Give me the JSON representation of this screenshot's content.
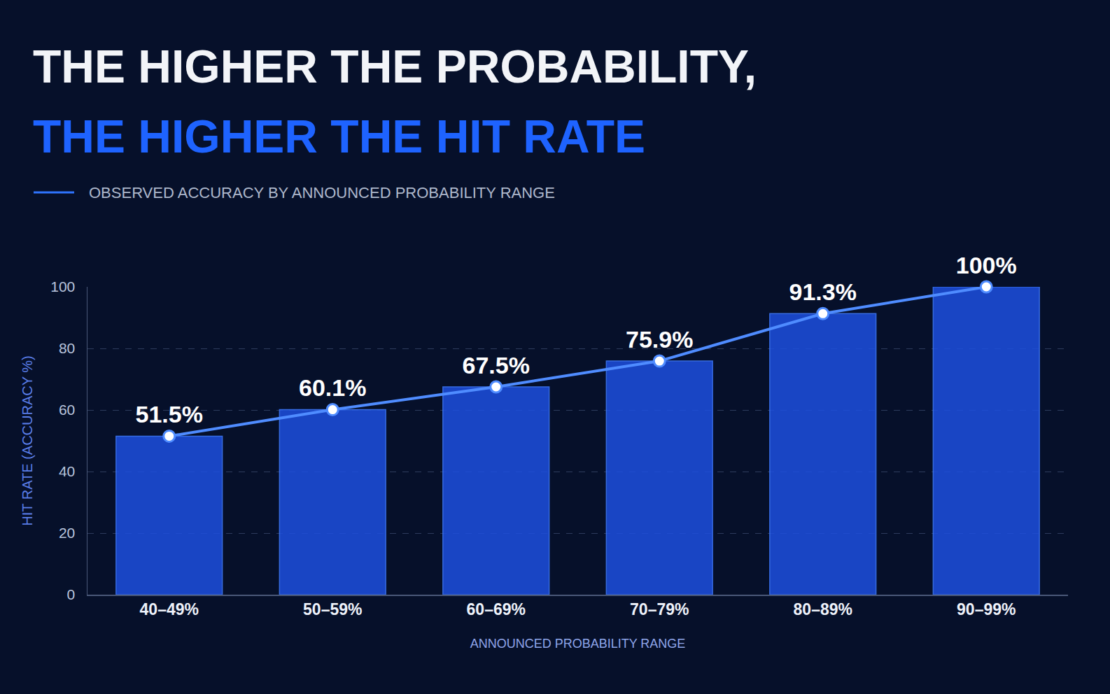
{
  "chart_data": {
    "type": "bar",
    "title": [
      "THE HIGHER THE PROBABILITY,",
      "THE HIGHER THE HIT RATE"
    ],
    "subtitle": "OBSERVED ACCURACY BY ANNOUNCED PROBABILITY RANGE",
    "x_label": "ANNOUNCED PROBABILITY RANGE",
    "y_label": "HIT RATE (ACCURACY %)",
    "categories": [
      "40–49%",
      "50–59%",
      "60–69%",
      "70–79%",
      "80–89%",
      "90–99%"
    ],
    "series": [
      {
        "type": "bar",
        "color": "#1d4fe0",
        "values": [
          51.5,
          60.1,
          67.5,
          75.9,
          91.3,
          100
        ]
      },
      {
        "type": "line",
        "color": "#4f8cff",
        "marker": "circle",
        "line_style": "solid",
        "data_labels": true,
        "values": [
          51.5,
          60.1,
          67.5,
          75.9,
          91.3,
          100
        ],
        "value_labels": [
          "51.5%",
          "60.1%",
          "67.5%",
          "75.9%",
          "91.3%",
          "100%"
        ]
      }
    ],
    "ylim": [
      0,
      100
    ],
    "yticks": [
      0,
      20,
      40,
      60,
      80,
      100
    ],
    "grid": true
  }
}
